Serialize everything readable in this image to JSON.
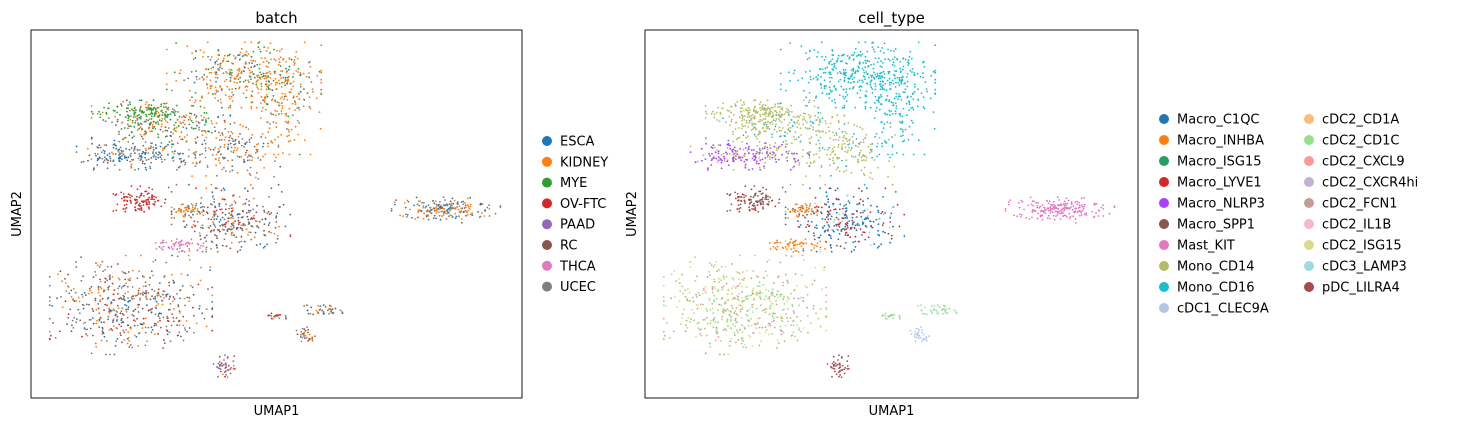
{
  "chart_data": [
    {
      "type": "scatter",
      "embedding": "UMAP",
      "title": "batch",
      "xlabel": "UMAP1",
      "ylabel": "UMAP2",
      "ticks": "none",
      "grid": false,
      "legend": {
        "placement": "right",
        "columns": 1,
        "entries": [
          {
            "label": "ESCA",
            "color": "#1f77b4"
          },
          {
            "label": "KIDNEY",
            "color": "#ff7f0e"
          },
          {
            "label": "MYE",
            "color": "#2ca02c"
          },
          {
            "label": "OV-FTC",
            "color": "#d62728"
          },
          {
            "label": "PAAD",
            "color": "#9467bd"
          },
          {
            "label": "RC",
            "color": "#8c564b"
          },
          {
            "label": "THCA",
            "color": "#e377c2"
          },
          {
            "label": "UCEC",
            "color": "#7f7f7f"
          }
        ]
      }
    },
    {
      "type": "scatter",
      "embedding": "UMAP",
      "title": "cell_type",
      "xlabel": "UMAP1",
      "ylabel": "UMAP2",
      "ticks": "none",
      "grid": false,
      "legend": {
        "placement": "right",
        "columns": 2,
        "entries": [
          {
            "label": "Macro_C1QC",
            "color": "#1f77b4"
          },
          {
            "label": "Macro_INHBA",
            "color": "#ff7f0e"
          },
          {
            "label": "Macro_ISG15",
            "color": "#279e68"
          },
          {
            "label": "Macro_LYVE1",
            "color": "#d62728"
          },
          {
            "label": "Macro_NLRP3",
            "color": "#aa40fc"
          },
          {
            "label": "Macro_SPP1",
            "color": "#8c564b"
          },
          {
            "label": "Mast_KIT",
            "color": "#e377c2"
          },
          {
            "label": "Mono_CD14",
            "color": "#b5bd61"
          },
          {
            "label": "Mono_CD16",
            "color": "#17becf"
          },
          {
            "label": "cDC1_CLEC9A",
            "color": "#aec7e8"
          },
          {
            "label": "cDC2_CD1A",
            "color": "#ffbb78"
          },
          {
            "label": "cDC2_CD1C",
            "color": "#98df8a"
          },
          {
            "label": "cDC2_CXCL9",
            "color": "#ff9896"
          },
          {
            "label": "cDC2_CXCR4hi",
            "color": "#c5b0d5"
          },
          {
            "label": "cDC2_FCN1",
            "color": "#c49c94"
          },
          {
            "label": "cDC2_IL1B",
            "color": "#f7b6d2"
          },
          {
            "label": "cDC2_ISG15",
            "color": "#dbdb8d"
          },
          {
            "label": "cDC3_LAMP3",
            "color": "#9edae5"
          },
          {
            "label": "pDC_LILRA4",
            "color": "#ad494a"
          }
        ]
      }
    }
  ]
}
